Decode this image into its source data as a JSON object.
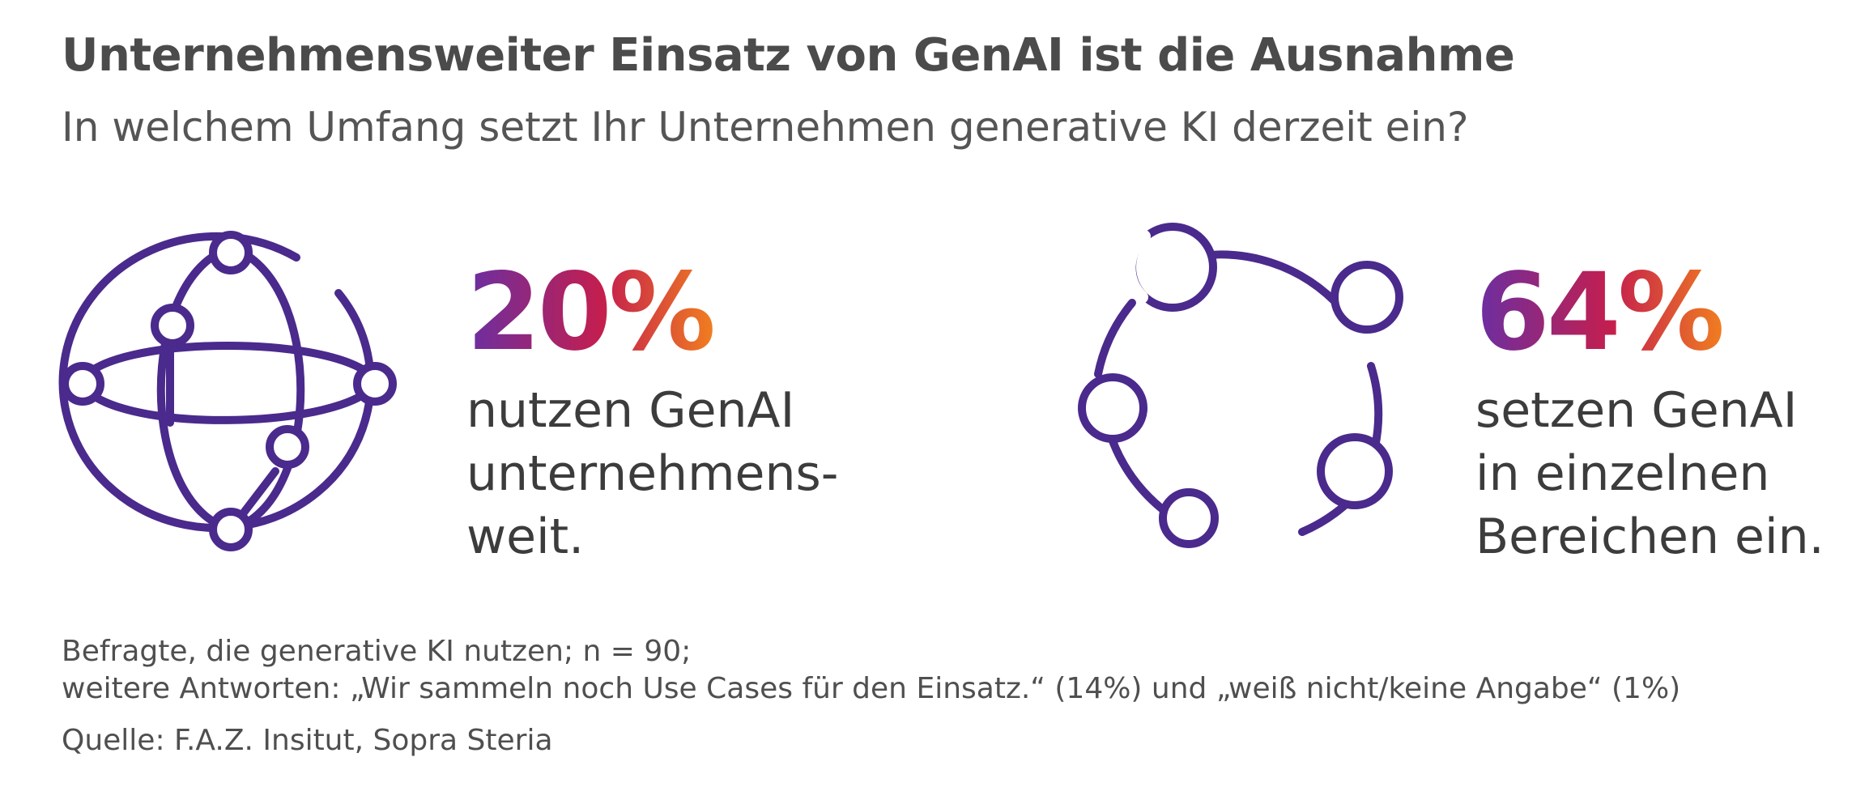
{
  "header": {
    "title": "Unternehmensweiter Einsatz von GenAI ist die Ausnahme",
    "subtitle": "In welchem Umfang setzt Ihr Unternehmen generative KI derzeit ein?"
  },
  "stats": [
    {
      "value": "20%",
      "text": "nutzen GenAI\nunternehmens-\nweit.",
      "icon": "globe-network-icon"
    },
    {
      "value": "64%",
      "text": "setzen GenAI\nin einzelnen\nBereichen ein.",
      "icon": "circular-network-icon"
    }
  ],
  "footnotes": {
    "base": "Befragte, die generative KI nutzen; n = 90;",
    "other_answers": "weitere Antworten: „Wir sammeln noch Use Cases für den Einsatz.“ (14%) und „weiß nicht/keine Angabe“ (1%)",
    "source": "Quelle: F.A.Z. Insitut, Sopra Steria"
  },
  "colors": {
    "icon_purple": "#4a2a8c",
    "gradient_start": "#6a2fa2",
    "gradient_mid": "#c41e4e",
    "gradient_end": "#f07d20",
    "text_gray": "#4b4b4b"
  }
}
